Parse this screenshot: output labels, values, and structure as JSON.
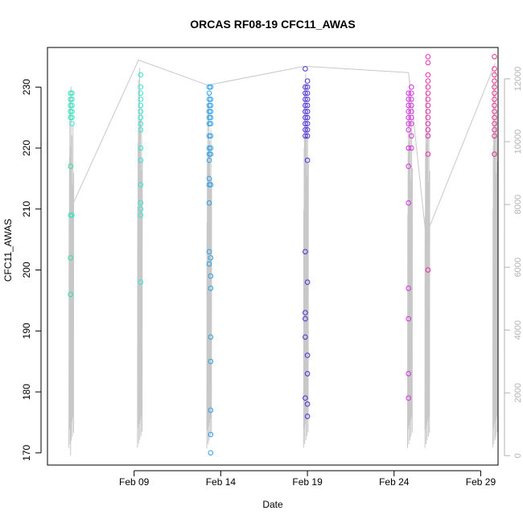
{
  "chart_data": {
    "type": "scatter",
    "title": "ORCAS RF08-19 CFC11_AWAS",
    "xlabel": "Date",
    "ylabel": "CFC11_AWAS",
    "xlim": [
      "2016-02-04",
      "2016-03-01"
    ],
    "ylim": [
      168,
      236.5
    ],
    "yticks": [
      170,
      180,
      190,
      200,
      210,
      220,
      230
    ],
    "xticks": [
      {
        "label": "Feb 09",
        "date": "2016-02-09"
      },
      {
        "label": "Feb 14",
        "date": "2016-02-14"
      },
      {
        "label": "Feb 19",
        "date": "2016-02-19"
      },
      {
        "label": "Feb 24",
        "date": "2016-02-24"
      },
      {
        "label": "Feb 29",
        "date": "2016-02-29"
      }
    ],
    "y2lim": [
      -300,
      13000
    ],
    "y2ticks": [
      0,
      2000,
      4000,
      6000,
      8000,
      10000,
      12000
    ],
    "y2_color": "#b3b3b3",
    "grid": false,
    "series": [
      {
        "color": "#33e0a6",
        "x": "2016-02-05T08:00",
        "values": [
          229,
          228,
          227,
          226,
          225,
          217,
          209,
          202,
          196
        ]
      },
      {
        "color": "#33e6d6",
        "x": "2016-02-05T10:00",
        "values": [
          229,
          228,
          227,
          226,
          225,
          224,
          209
        ]
      },
      {
        "color": "#33e6d6",
        "x": "2016-02-09T09:00",
        "values": [
          232,
          230,
          229,
          228,
          227,
          226,
          225,
          224,
          223,
          220,
          218,
          214,
          211,
          210,
          209,
          198
        ]
      },
      {
        "color": "#2f9fe6",
        "x": "2016-02-13T08:00",
        "values": [
          230,
          229,
          228,
          227,
          226,
          225,
          224,
          222,
          220,
          219,
          218,
          215,
          214,
          211,
          203,
          201
        ]
      },
      {
        "color": "#2f9fe6",
        "x": "2016-02-13T10:00",
        "values": [
          230,
          228,
          227,
          226,
          225,
          224,
          222,
          220,
          219,
          214,
          202,
          199,
          197,
          189,
          185,
          177,
          173,
          170
        ]
      },
      {
        "color": "#4a2fd8",
        "x": "2016-02-18T21:00",
        "values": [
          233,
          230,
          229,
          228,
          227,
          226,
          225,
          224,
          223,
          222,
          203,
          193,
          192,
          189,
          179
        ]
      },
      {
        "color": "#4a2fd8",
        "x": "2016-02-19T00:00",
        "values": [
          231,
          230,
          229,
          228,
          227,
          226,
          225,
          224,
          223,
          222,
          218,
          198,
          186,
          183,
          178,
          176
        ]
      },
      {
        "color": "#d92fe6",
        "x": "2016-02-24T20:00",
        "values": [
          229,
          228,
          227,
          226,
          225,
          224,
          223,
          220,
          217,
          211,
          197,
          192,
          183,
          179
        ]
      },
      {
        "color": "#d92fe6",
        "x": "2016-02-25T00:00",
        "values": [
          230,
          229,
          228,
          227,
          226,
          225,
          224,
          222,
          220
        ]
      },
      {
        "color": "#e62fb0",
        "x": "2016-02-25T23:00",
        "values": [
          235,
          234,
          232,
          231,
          230,
          229,
          228,
          227,
          226,
          225,
          224,
          223,
          222,
          219,
          200
        ]
      },
      {
        "color": "#e6308f",
        "x": "2016-02-29T19:00",
        "values": [
          235,
          233,
          232,
          231,
          230,
          229,
          228,
          227,
          226,
          225,
          224,
          223,
          222,
          219
        ]
      }
    ],
    "secondary_line": {
      "color": "#c8c8c8",
      "points": [
        {
          "x": "2016-02-05T08:00",
          "y": 0
        },
        {
          "x": "2016-02-05T11:00",
          "y": 8000
        },
        {
          "x": "2016-02-09T06:00",
          "y": 12600
        },
        {
          "x": "2016-02-13T06:00",
          "y": 11800
        },
        {
          "x": "2016-02-18T20:00",
          "y": 12400
        },
        {
          "x": "2016-02-24T20:00",
          "y": 12200
        },
        {
          "x": "2016-02-25T20:00",
          "y": 7000
        },
        {
          "x": "2016-02-29T20:00",
          "y": 12500
        }
      ],
      "flights": [
        {
          "x": "2016-02-05T09:00",
          "max": 12000
        },
        {
          "x": "2016-02-09T08:00",
          "max": 12600
        },
        {
          "x": "2016-02-13T08:00",
          "max": 11800
        },
        {
          "x": "2016-02-18T22:00",
          "max": 12400
        },
        {
          "x": "2016-02-24T22:00",
          "max": 12200
        },
        {
          "x": "2016-02-25T22:00",
          "max": 12100
        },
        {
          "x": "2016-02-29T20:00",
          "max": 12500
        }
      ]
    }
  }
}
